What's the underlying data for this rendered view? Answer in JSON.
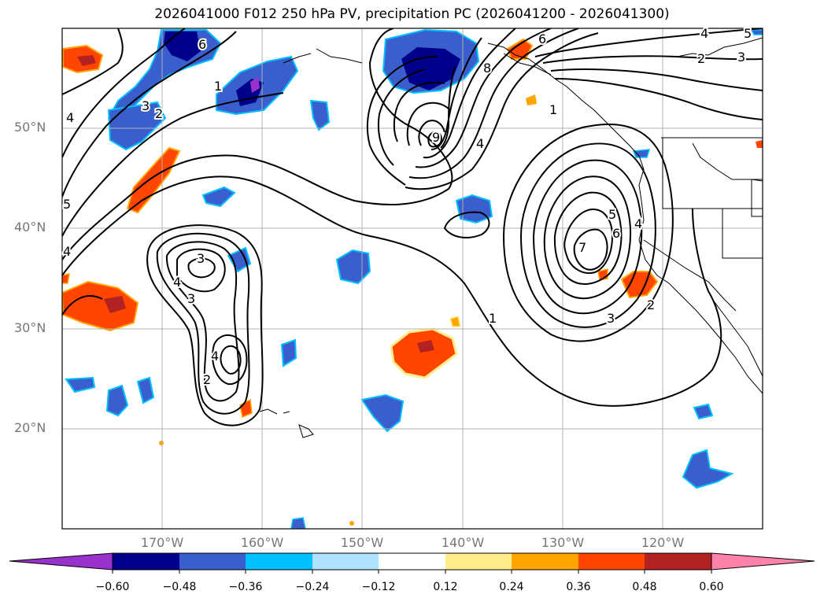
{
  "title": "2026041000 F012 250 hPa PV, precipitation PC (2026041200 - 2026041300)",
  "axes": {
    "lat_labels": [
      "50°N",
      "40°N",
      "30°N",
      "20°N"
    ],
    "lon_labels": [
      "170°W",
      "160°W",
      "150°W",
      "140°W",
      "130°W",
      "120°W"
    ]
  },
  "colorbar": {
    "ticks": [
      "−0.60",
      "−0.48",
      "−0.36",
      "−0.24",
      "−0.12",
      "0.12",
      "0.24",
      "0.36",
      "0.48",
      "0.60"
    ],
    "colors": {
      "under": "#9932cc",
      "b1": "#00008b",
      "b2": "#3a5fcd",
      "b3": "#00bfff",
      "b4": "#b0e2ff",
      "neutral": "#ffffff",
      "p1": "#ffec8b",
      "p2": "#ffa500",
      "p3": "#ff4500",
      "p4": "#b22222",
      "over": "#ff82ab"
    }
  },
  "contour_labels": {
    "topleft": [
      "4",
      "6",
      "1",
      "3",
      "2",
      "4",
      "5"
    ],
    "north_trough": [
      "9",
      "8",
      "6",
      "4",
      "1"
    ],
    "top_right": [
      "4",
      "5",
      "2",
      "3"
    ],
    "east_low": [
      "7",
      "6",
      "5",
      "4",
      "3",
      "2"
    ],
    "central": [
      "1"
    ],
    "west_low": [
      "3",
      "4",
      "3",
      "4",
      "2"
    ]
  }
}
